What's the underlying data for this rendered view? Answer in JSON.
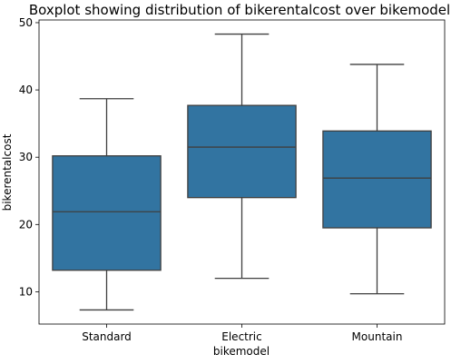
{
  "chart_data": {
    "type": "boxplot",
    "title": "Boxplot showing distribution of bikerentalcost over bikemodel",
    "xlabel": "bikemodel",
    "ylabel": "bikerentalcost",
    "categories": [
      "Standard",
      "Electric",
      "Mountain"
    ],
    "boxes": [
      {
        "category": "Standard",
        "whisker_low": 7.3,
        "q1": 13.2,
        "median": 21.9,
        "q3": 30.2,
        "whisker_high": 38.7
      },
      {
        "category": "Electric",
        "whisker_low": 12.0,
        "q1": 24.0,
        "median": 31.5,
        "q3": 37.7,
        "whisker_high": 48.3
      },
      {
        "category": "Mountain",
        "whisker_low": 9.7,
        "q1": 19.5,
        "median": 26.9,
        "q3": 33.9,
        "whisker_high": 43.8
      }
    ],
    "yticks": [
      10,
      20,
      30,
      40,
      50
    ],
    "ylim": [
      5.2,
      50.4
    ],
    "box_color": "#3274a1",
    "line_color": "#3f3f3f",
    "grid": false
  }
}
